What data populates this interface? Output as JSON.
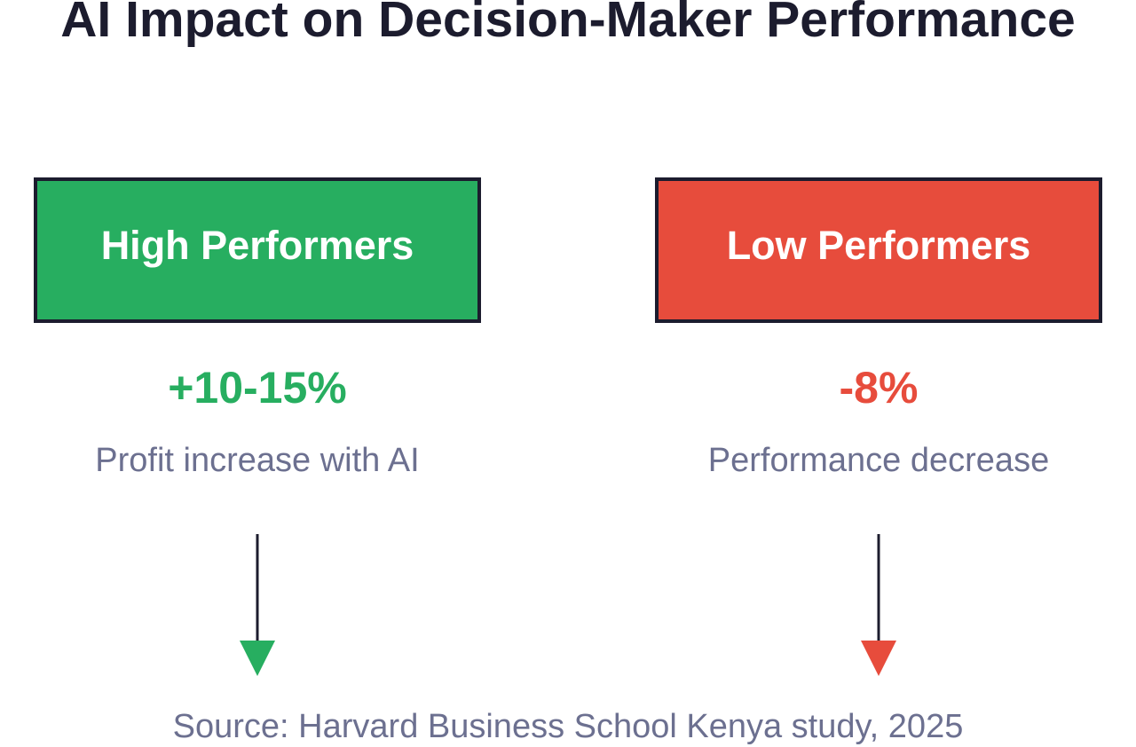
{
  "header": {
    "title": "AI Impact on Decision-Maker Performance"
  },
  "panels": [
    {
      "label": "High Performers",
      "stat": "+10-15%",
      "description": "Profit increase with AI"
    },
    {
      "label": "Low Performers",
      "stat": "-8%",
      "description": "Performance decrease"
    }
  ],
  "footer": {
    "source": "Source: Harvard Business School Kenya study, 2025"
  }
}
